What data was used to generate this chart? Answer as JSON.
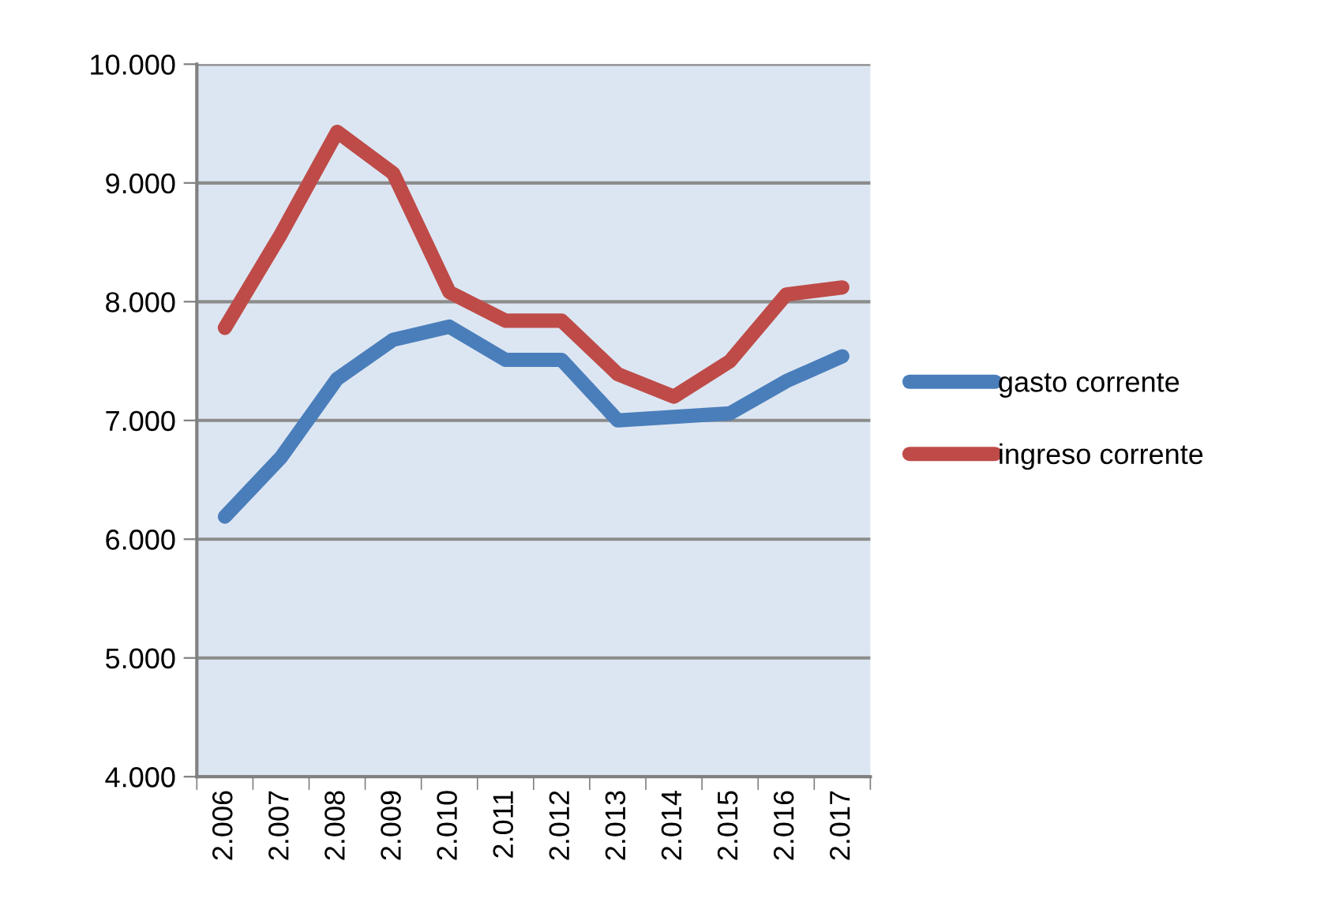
{
  "chart_data": {
    "type": "line",
    "categories": [
      "2.006",
      "2.007",
      "2.008",
      "2.009",
      "2.010",
      "2.011",
      "2.012",
      "2.013",
      "2.014",
      "2.015",
      "2.016",
      "2.017"
    ],
    "series": [
      {
        "name": "gasto corrente",
        "color": "#4a7ebb",
        "values": [
          6190,
          6690,
          7350,
          7680,
          7790,
          7510,
          7510,
          7000,
          7030,
          7060,
          7330,
          7540
        ]
      },
      {
        "name": "ingreso corrente",
        "color": "#be4b48",
        "values": [
          7780,
          8570,
          9430,
          9080,
          8080,
          7840,
          7840,
          7390,
          7200,
          7500,
          8060,
          8120
        ]
      }
    ],
    "ylim": [
      4000,
      10000
    ],
    "yticks": [
      {
        "value": 4000,
        "label": "4.000"
      },
      {
        "value": 5000,
        "label": "5.000"
      },
      {
        "value": 6000,
        "label": "6.000"
      },
      {
        "value": 7000,
        "label": "7.000"
      },
      {
        "value": 8000,
        "label": "8.000"
      },
      {
        "value": 9000,
        "label": "9.000"
      },
      {
        "value": 10000,
        "label": "10.000"
      }
    ],
    "grid": "y",
    "legend": "right",
    "marker": "none",
    "line_style": "solid"
  }
}
